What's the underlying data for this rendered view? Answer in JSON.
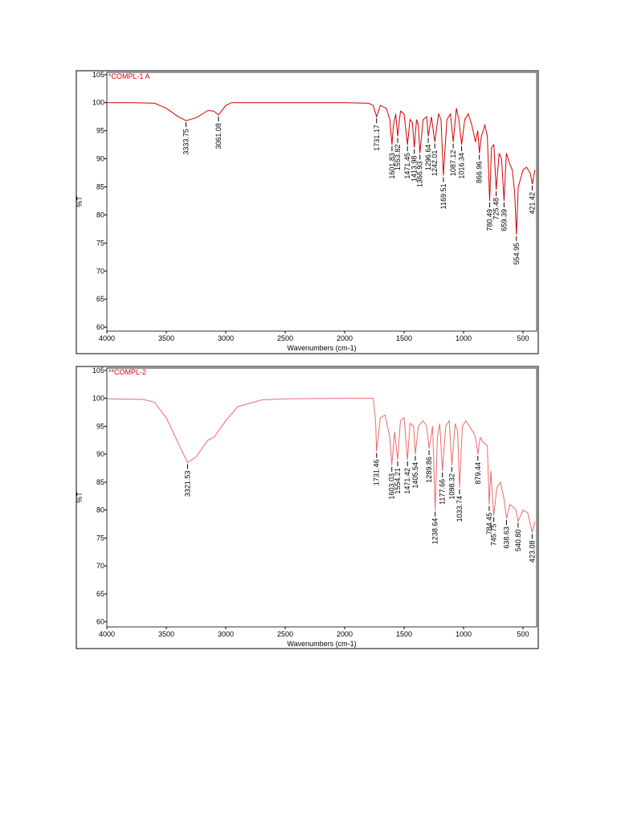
{
  "chart_data": [
    {
      "type": "line",
      "title": "*COMPL-1 A",
      "xlabel": "Wavenumbers (cm-1)",
      "ylabel": "%T",
      "color": "#d40000",
      "xlim": [
        4000,
        385
      ],
      "ylim": [
        59.3,
        105.4
      ],
      "xticks": [
        4000,
        3500,
        3000,
        2500,
        2000,
        1500,
        1000,
        500
      ],
      "yticks": [
        60,
        65,
        70,
        75,
        80,
        85,
        90,
        95,
        100,
        105
      ],
      "x": [
        4000,
        3800,
        3600,
        3500,
        3400,
        3333.75,
        3250,
        3150,
        3100,
        3061.08,
        3000,
        2950,
        2500,
        2000,
        1800,
        1760,
        1731.17,
        1700,
        1650,
        1620,
        1601.83,
        1590,
        1570,
        1553.82,
        1530,
        1500,
        1471.45,
        1450,
        1430,
        1413.98,
        1395,
        1380,
        1366.93,
        1340,
        1310,
        1296.64,
        1270,
        1242.01,
        1210,
        1190,
        1169.51,
        1140,
        1110,
        1087.12,
        1060,
        1040,
        1016.34,
        990,
        960,
        930,
        900,
        880,
        866.96,
        850,
        820,
        800,
        780.49,
        765,
        745,
        725.48,
        700,
        680,
        659.39,
        640,
        610,
        590,
        570,
        554.95,
        540,
        500,
        470,
        440,
        421.42,
        400
      ],
      "values": [
        100,
        100,
        99.9,
        99,
        97.5,
        96.8,
        97.3,
        98.6,
        98.5,
        97.8,
        99.5,
        100,
        100,
        100,
        99.9,
        99.5,
        97.5,
        99.5,
        99,
        97,
        92.5,
        96,
        98,
        94,
        98.5,
        98,
        92.5,
        97,
        96.5,
        92,
        97,
        96,
        91,
        97,
        97.5,
        94,
        97.5,
        93,
        98,
        97,
        87,
        97,
        98,
        93,
        99,
        97,
        92.5,
        97,
        98,
        96,
        93,
        95,
        91,
        94,
        96,
        94,
        82.5,
        92,
        92.5,
        84.5,
        91,
        90,
        82.5,
        91,
        89,
        88,
        84,
        76.5,
        85,
        88,
        88.5,
        87.5,
        85.5,
        88
      ],
      "peaks": [
        {
          "label": "3333.75",
          "x": 3333.75,
          "y": 96.8
        },
        {
          "label": "3061.08",
          "x": 3061.08,
          "y": 97.8
        },
        {
          "label": "1731.17",
          "x": 1731.17,
          "y": 97.5
        },
        {
          "label": "1601.83",
          "x": 1601.83,
          "y": 92.5
        },
        {
          "label": "1553.82",
          "x": 1553.82,
          "y": 94
        },
        {
          "label": "1471.45",
          "x": 1471.45,
          "y": 92.5
        },
        {
          "label": "1413.98",
          "x": 1413.98,
          "y": 92
        },
        {
          "label": "1366.93",
          "x": 1366.93,
          "y": 91
        },
        {
          "label": "1296.64",
          "x": 1296.64,
          "y": 94
        },
        {
          "label": "1242.01",
          "x": 1242.01,
          "y": 93
        },
        {
          "label": "1169.51",
          "x": 1169.51,
          "y": 87
        },
        {
          "label": "1087.12",
          "x": 1087.12,
          "y": 93
        },
        {
          "label": "1016.34",
          "x": 1016.34,
          "y": 92.5
        },
        {
          "label": "866.96",
          "x": 866.96,
          "y": 91
        },
        {
          "label": "780.49",
          "x": 780.49,
          "y": 82.5
        },
        {
          "label": "725.48",
          "x": 725.48,
          "y": 84.5
        },
        {
          "label": "659.39",
          "x": 659.39,
          "y": 82.5
        },
        {
          "label": "554.95",
          "x": 554.95,
          "y": 76.5
        },
        {
          "label": "421.42",
          "x": 421.42,
          "y": 85.5
        }
      ]
    },
    {
      "type": "line",
      "title": "**COMPL-2",
      "xlabel": "Wavenumbers (cm-1)",
      "ylabel": "%T",
      "color": "#ee6a6a",
      "xlim": [
        4000,
        385
      ],
      "ylim": [
        59.1,
        105.4
      ],
      "xticks": [
        4000,
        3500,
        3000,
        2500,
        2000,
        1500,
        1000,
        500
      ],
      "yticks": [
        60,
        65,
        70,
        75,
        80,
        85,
        90,
        95,
        100,
        105
      ],
      "x": [
        4000,
        3700,
        3600,
        3500,
        3400,
        3321.53,
        3250,
        3150,
        3100,
        3000,
        2900,
        2700,
        2500,
        2000,
        1760,
        1740,
        1731.46,
        1700,
        1660,
        1620,
        1603.03,
        1580,
        1554.21,
        1530,
        1500,
        1471.42,
        1450,
        1420,
        1405.54,
        1380,
        1340,
        1310,
        1289.86,
        1260,
        1238.64,
        1220,
        1200,
        1177.66,
        1150,
        1120,
        1098.32,
        1070,
        1050,
        1033.74,
        1010,
        980,
        950,
        920,
        900,
        879.44,
        860,
        830,
        800,
        784.45,
        770,
        745.75,
        720,
        690,
        660,
        638.63,
        610,
        580,
        560,
        540.8,
        500,
        460,
        423.08,
        400
      ],
      "values": [
        99.9,
        99.8,
        99.3,
        96.5,
        92,
        88.5,
        89.5,
        92.5,
        93,
        96,
        98.5,
        99.7,
        99.9,
        100,
        100,
        96,
        90.5,
        96.5,
        97,
        93,
        88,
        94,
        89,
        96,
        96.5,
        89,
        95.5,
        95,
        90,
        95,
        96,
        95,
        91,
        95,
        80,
        93,
        95.5,
        87,
        95,
        96,
        88,
        95.5,
        94,
        84,
        95,
        96,
        95,
        94,
        93,
        90,
        93,
        92,
        91.5,
        81,
        87,
        79,
        84,
        85,
        82,
        78.5,
        81,
        80.5,
        80,
        78,
        80,
        79.5,
        76,
        78
      ],
      "peaks": [
        {
          "label": "3321.53",
          "x": 3321.53,
          "y": 88.5
        },
        {
          "label": "1731.46",
          "x": 1731.46,
          "y": 90.5
        },
        {
          "label": "1603.03",
          "x": 1603.03,
          "y": 88
        },
        {
          "label": "1554.21",
          "x": 1554.21,
          "y": 89
        },
        {
          "label": "1471.42",
          "x": 1471.42,
          "y": 89
        },
        {
          "label": "1405.54",
          "x": 1405.54,
          "y": 90
        },
        {
          "label": "1289.86",
          "x": 1289.86,
          "y": 91
        },
        {
          "label": "1238.64",
          "x": 1238.64,
          "y": 80
        },
        {
          "label": "1177.66",
          "x": 1177.66,
          "y": 87
        },
        {
          "label": "1098.32",
          "x": 1098.32,
          "y": 88
        },
        {
          "label": "1033.74",
          "x": 1033.74,
          "y": 84
        },
        {
          "label": "879.44",
          "x": 879.44,
          "y": 90
        },
        {
          "label": "784.45",
          "x": 784.45,
          "y": 81
        },
        {
          "label": "745.75",
          "x": 745.75,
          "y": 79
        },
        {
          "label": "638.63",
          "x": 638.63,
          "y": 78.5
        },
        {
          "label": "540.80",
          "x": 540.8,
          "y": 78
        },
        {
          "label": "423.08",
          "x": 423.08,
          "y": 76
        }
      ]
    }
  ]
}
